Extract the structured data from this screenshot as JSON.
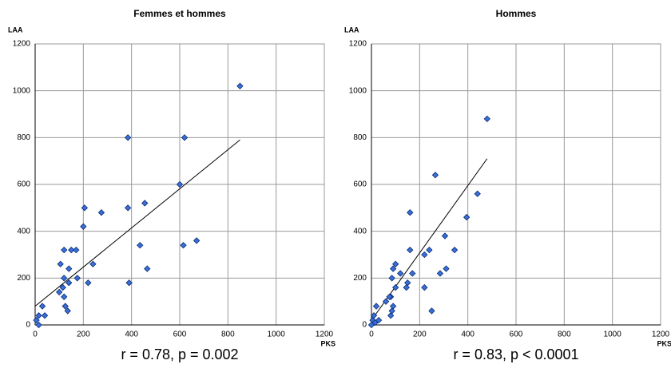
{
  "chart_data": [
    {
      "type": "scatter",
      "title": "Femmes et hommes",
      "x_label": "PKS",
      "y_label": "LAA",
      "xlim": [
        0,
        1200
      ],
      "ylim": [
        0,
        1200
      ],
      "xticks": [
        0,
        200,
        400,
        600,
        800,
        1000,
        1200
      ],
      "yticks": [
        0,
        200,
        400,
        600,
        800,
        1000,
        1200
      ],
      "grid": true,
      "color": "#3a6fd8",
      "x": [
        850,
        385,
        620,
        600,
        455,
        385,
        275,
        205,
        200,
        435,
        670,
        615,
        465,
        390,
        220,
        240,
        105,
        120,
        150,
        170,
        140,
        120,
        175,
        140,
        100,
        115,
        120,
        125,
        135,
        30,
        40,
        15,
        5,
        15
      ],
      "y": [
        1020,
        800,
        800,
        600,
        520,
        500,
        480,
        500,
        420,
        340,
        360,
        340,
        240,
        180,
        180,
        260,
        260,
        320,
        320,
        320,
        240,
        200,
        200,
        180,
        140,
        160,
        120,
        80,
        60,
        80,
        40,
        40,
        20,
        0
      ],
      "trendline": {
        "x": [
          0,
          850
        ],
        "y": [
          80,
          790
        ]
      },
      "annotation": "r = 0.78, p = 0.002"
    },
    {
      "type": "scatter",
      "title": "Hommes",
      "x_label": "PKS",
      "y_label": "LAA",
      "xlim": [
        0,
        1200
      ],
      "ylim": [
        0,
        1200
      ],
      "xticks": [
        0,
        200,
        400,
        600,
        800,
        1000,
        1200
      ],
      "yticks": [
        0,
        200,
        400,
        600,
        800,
        1000,
        1200
      ],
      "grid": true,
      "color": "#3a6fd8",
      "x": [
        480,
        265,
        440,
        395,
        160,
        305,
        345,
        240,
        220,
        160,
        170,
        285,
        310,
        220,
        250,
        150,
        145,
        100,
        90,
        85,
        120,
        100,
        60,
        80,
        75,
        90,
        85,
        80,
        20,
        30,
        10,
        5,
        0,
        15
      ],
      "y": [
        880,
        640,
        560,
        460,
        480,
        380,
        320,
        320,
        300,
        320,
        220,
        220,
        240,
        160,
        60,
        180,
        160,
        260,
        240,
        200,
        220,
        160,
        100,
        120,
        120,
        80,
        60,
        40,
        80,
        20,
        40,
        20,
        0,
        10
      ],
      "trendline": {
        "x": [
          0,
          480
        ],
        "y": [
          20,
          710
        ]
      },
      "annotation": "r = 0.83, p < 0.0001"
    }
  ]
}
